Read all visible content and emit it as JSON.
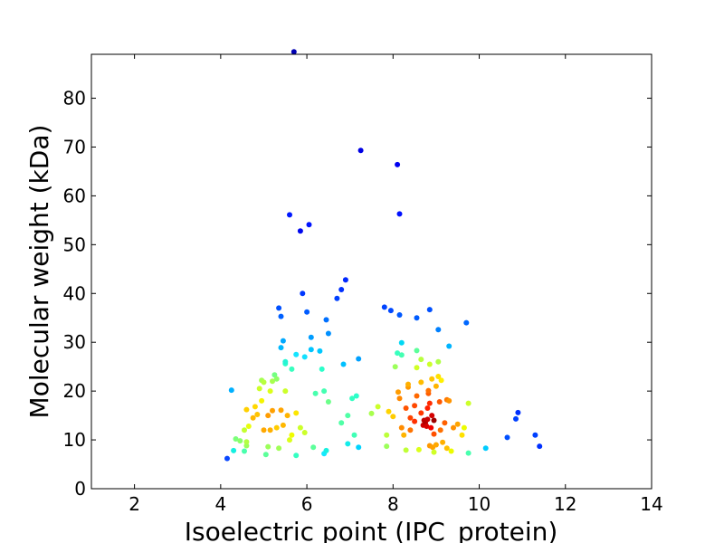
{
  "chart_data": {
    "type": "scatter",
    "title": "",
    "xlabel": "Isoelectric point (IPC_protein)",
    "ylabel": "Molecular weight (kDa)",
    "xlim": [
      1,
      14
    ],
    "ylim": [
      0,
      89
    ],
    "x_ticks": [
      2,
      4,
      6,
      8,
      10,
      12,
      14
    ],
    "y_ticks": [
      0,
      10,
      20,
      30,
      40,
      50,
      60,
      70,
      80
    ],
    "grid": false,
    "legend": "none",
    "colormap": "jet (point density)",
    "points": [
      {
        "x": 4.15,
        "y": 6.2,
        "c": "#0a48ff"
      },
      {
        "x": 4.25,
        "y": 20.2,
        "c": "#00b0ff"
      },
      {
        "x": 4.3,
        "y": 7.8,
        "c": "#14f0e0"
      },
      {
        "x": 4.35,
        "y": 10.2,
        "c": "#7cff7a"
      },
      {
        "x": 4.45,
        "y": 9.8,
        "c": "#8cff6a"
      },
      {
        "x": 4.55,
        "y": 7.7,
        "c": "#4affad"
      },
      {
        "x": 4.55,
        "y": 12.0,
        "c": "#c4ff30"
      },
      {
        "x": 4.6,
        "y": 16.2,
        "c": "#ffd000"
      },
      {
        "x": 4.6,
        "y": 8.8,
        "c": "#9cff5a"
      },
      {
        "x": 4.6,
        "y": 9.6,
        "c": "#b4ff42"
      },
      {
        "x": 4.65,
        "y": 12.8,
        "c": "#e8ff0c"
      },
      {
        "x": 4.75,
        "y": 14.5,
        "c": "#ffb800"
      },
      {
        "x": 4.8,
        "y": 16.8,
        "c": "#ffd800"
      },
      {
        "x": 4.85,
        "y": 15.2,
        "c": "#ffc400"
      },
      {
        "x": 4.9,
        "y": 20.5,
        "c": "#ccff2a"
      },
      {
        "x": 4.95,
        "y": 22.2,
        "c": "#a4ff52"
      },
      {
        "x": 4.95,
        "y": 18.0,
        "c": "#f4f400"
      },
      {
        "x": 5.0,
        "y": 12.0,
        "c": "#ffa800"
      },
      {
        "x": 5.0,
        "y": 21.8,
        "c": "#b8ff3e"
      },
      {
        "x": 5.05,
        "y": 7.0,
        "c": "#5cff9a"
      },
      {
        "x": 5.1,
        "y": 8.6,
        "c": "#9cff5a"
      },
      {
        "x": 5.1,
        "y": 15.0,
        "c": "#ff9c00"
      },
      {
        "x": 5.15,
        "y": 20.0,
        "c": "#dcff1a"
      },
      {
        "x": 5.15,
        "y": 12.0,
        "c": "#ffb000"
      },
      {
        "x": 5.2,
        "y": 16.0,
        "c": "#ffa000"
      },
      {
        "x": 5.2,
        "y": 22.0,
        "c": "#a8ff4e"
      },
      {
        "x": 5.25,
        "y": 23.3,
        "c": "#74ff82"
      },
      {
        "x": 5.3,
        "y": 22.5,
        "c": "#90ff66"
      },
      {
        "x": 5.3,
        "y": 12.5,
        "c": "#ffcc00"
      },
      {
        "x": 5.35,
        "y": 37.0,
        "c": "#0050ff"
      },
      {
        "x": 5.35,
        "y": 8.3,
        "c": "#a0ff56"
      },
      {
        "x": 5.4,
        "y": 35.3,
        "c": "#0060ff"
      },
      {
        "x": 5.4,
        "y": 28.9,
        "c": "#00b8ff"
      },
      {
        "x": 5.4,
        "y": 16.1,
        "c": "#ffa400"
      },
      {
        "x": 5.45,
        "y": 30.3,
        "c": "#00a8ff"
      },
      {
        "x": 5.45,
        "y": 13.0,
        "c": "#ffb800"
      },
      {
        "x": 5.5,
        "y": 25.6,
        "c": "#2cffca"
      },
      {
        "x": 5.5,
        "y": 26.0,
        "c": "#24f4d4"
      },
      {
        "x": 5.5,
        "y": 20.0,
        "c": "#ccff2a"
      },
      {
        "x": 5.55,
        "y": 15.0,
        "c": "#ffb400"
      },
      {
        "x": 5.6,
        "y": 56.1,
        "c": "#0018ff"
      },
      {
        "x": 5.6,
        "y": 10.0,
        "c": "#dcff1a"
      },
      {
        "x": 5.65,
        "y": 11.0,
        "c": "#f0fc00"
      },
      {
        "x": 5.65,
        "y": 24.5,
        "c": "#38ffbf"
      },
      {
        "x": 5.7,
        "y": 89.5,
        "c": "#0000b4"
      },
      {
        "x": 5.75,
        "y": 27.5,
        "c": "#14e4ff"
      },
      {
        "x": 5.75,
        "y": 15.5,
        "c": "#fce600"
      },
      {
        "x": 5.75,
        "y": 6.8,
        "c": "#34ffc2"
      },
      {
        "x": 5.85,
        "y": 52.8,
        "c": "#0008ee"
      },
      {
        "x": 5.85,
        "y": 12.5,
        "c": "#ccff2a"
      },
      {
        "x": 5.9,
        "y": 40.0,
        "c": "#0038ff"
      },
      {
        "x": 5.95,
        "y": 27.0,
        "c": "#14e0ff"
      },
      {
        "x": 5.95,
        "y": 11.5,
        "c": "#ccff2a"
      },
      {
        "x": 6.0,
        "y": 36.2,
        "c": "#005cff"
      },
      {
        "x": 6.05,
        "y": 54.1,
        "c": "#0014ff"
      },
      {
        "x": 6.1,
        "y": 28.5,
        "c": "#00c4ff"
      },
      {
        "x": 6.1,
        "y": 31.0,
        "c": "#009cff"
      },
      {
        "x": 6.15,
        "y": 8.5,
        "c": "#5cff9a"
      },
      {
        "x": 6.2,
        "y": 19.5,
        "c": "#48ffae"
      },
      {
        "x": 6.3,
        "y": 28.2,
        "c": "#00c8ff"
      },
      {
        "x": 6.35,
        "y": 24.5,
        "c": "#2cffca"
      },
      {
        "x": 6.4,
        "y": 7.2,
        "c": "#14e8ff"
      },
      {
        "x": 6.4,
        "y": 20.0,
        "c": "#44ffb2"
      },
      {
        "x": 6.45,
        "y": 34.6,
        "c": "#0070ff"
      },
      {
        "x": 6.45,
        "y": 7.8,
        "c": "#18f0e0"
      },
      {
        "x": 6.5,
        "y": 17.8,
        "c": "#6cff8a"
      },
      {
        "x": 6.5,
        "y": 31.8,
        "c": "#0090ff"
      },
      {
        "x": 6.7,
        "y": 39.0,
        "c": "#0040ff"
      },
      {
        "x": 6.8,
        "y": 40.8,
        "c": "#0030ff"
      },
      {
        "x": 6.8,
        "y": 13.5,
        "c": "#50ffa6"
      },
      {
        "x": 6.85,
        "y": 25.5,
        "c": "#00c0ff"
      },
      {
        "x": 6.9,
        "y": 42.8,
        "c": "#0028ff"
      },
      {
        "x": 6.95,
        "y": 15.0,
        "c": "#50ffa6"
      },
      {
        "x": 6.95,
        "y": 9.2,
        "c": "#14ecea"
      },
      {
        "x": 7.05,
        "y": 18.5,
        "c": "#34ffc2"
      },
      {
        "x": 7.1,
        "y": 11.0,
        "c": "#40ffb6"
      },
      {
        "x": 7.15,
        "y": 19.0,
        "c": "#2cffca"
      },
      {
        "x": 7.2,
        "y": 26.6,
        "c": "#00a0ff"
      },
      {
        "x": 7.2,
        "y": 8.5,
        "c": "#00d4ff"
      },
      {
        "x": 7.25,
        "y": 69.3,
        "c": "#0000e4"
      },
      {
        "x": 7.5,
        "y": 15.4,
        "c": "#a8ff4e"
      },
      {
        "x": 7.65,
        "y": 16.8,
        "c": "#ccff2a"
      },
      {
        "x": 7.8,
        "y": 37.2,
        "c": "#0044ff"
      },
      {
        "x": 7.85,
        "y": 11.0,
        "c": "#bcff3a"
      },
      {
        "x": 7.85,
        "y": 8.7,
        "c": "#9cff5a"
      },
      {
        "x": 7.9,
        "y": 15.8,
        "c": "#ffd400"
      },
      {
        "x": 7.95,
        "y": 36.5,
        "c": "#0048ff"
      },
      {
        "x": 8.0,
        "y": 14.8,
        "c": "#ffcc00"
      },
      {
        "x": 8.05,
        "y": 25.0,
        "c": "#9cff5a"
      },
      {
        "x": 8.1,
        "y": 66.4,
        "c": "#0000f0"
      },
      {
        "x": 8.1,
        "y": 27.8,
        "c": "#38ffbf"
      },
      {
        "x": 8.12,
        "y": 19.8,
        "c": "#ff9c00"
      },
      {
        "x": 8.15,
        "y": 56.3,
        "c": "#0010ff"
      },
      {
        "x": 8.15,
        "y": 35.6,
        "c": "#0058ff"
      },
      {
        "x": 8.15,
        "y": 18.5,
        "c": "#ff8800"
      },
      {
        "x": 8.2,
        "y": 29.9,
        "c": "#00d8f4"
      },
      {
        "x": 8.2,
        "y": 27.4,
        "c": "#44ffb2"
      },
      {
        "x": 8.2,
        "y": 12.5,
        "c": "#ff8c00"
      },
      {
        "x": 8.25,
        "y": 11.0,
        "c": "#ffb400"
      },
      {
        "x": 8.3,
        "y": 7.9,
        "c": "#c0ff36"
      },
      {
        "x": 8.3,
        "y": 16.5,
        "c": "#ff5400"
      },
      {
        "x": 8.35,
        "y": 20.8,
        "c": "#ff9800"
      },
      {
        "x": 8.35,
        "y": 21.4,
        "c": "#ffb000"
      },
      {
        "x": 8.4,
        "y": 14.5,
        "c": "#ff4400"
      },
      {
        "x": 8.4,
        "y": 12.0,
        "c": "#ff7400"
      },
      {
        "x": 8.5,
        "y": 13.8,
        "c": "#ff3000"
      },
      {
        "x": 8.5,
        "y": 17.0,
        "c": "#ff4800"
      },
      {
        "x": 8.55,
        "y": 35.0,
        "c": "#005cff"
      },
      {
        "x": 8.55,
        "y": 28.3,
        "c": "#5cff9a"
      },
      {
        "x": 8.55,
        "y": 19.0,
        "c": "#ff6800"
      },
      {
        "x": 8.55,
        "y": 24.8,
        "c": "#d0ff26"
      },
      {
        "x": 8.6,
        "y": 8.0,
        "c": "#dcff1a"
      },
      {
        "x": 8.65,
        "y": 26.5,
        "c": "#b8ff3e"
      },
      {
        "x": 8.65,
        "y": 15.5,
        "c": "#ff3800"
      },
      {
        "x": 8.65,
        "y": 21.8,
        "c": "#ffbc00"
      },
      {
        "x": 8.7,
        "y": 13.0,
        "c": "#d00000"
      },
      {
        "x": 8.72,
        "y": 14.0,
        "c": "#c00000"
      },
      {
        "x": 8.75,
        "y": 13.5,
        "c": "#b40000"
      },
      {
        "x": 8.78,
        "y": 12.8,
        "c": "#d80000"
      },
      {
        "x": 8.8,
        "y": 14.2,
        "c": "#c80000"
      },
      {
        "x": 8.8,
        "y": 16.5,
        "c": "#ff2000"
      },
      {
        "x": 8.82,
        "y": 19.5,
        "c": "#ff5c00"
      },
      {
        "x": 8.82,
        "y": 20.1,
        "c": "#ff7000"
      },
      {
        "x": 8.85,
        "y": 36.7,
        "c": "#0050ff"
      },
      {
        "x": 8.85,
        "y": 25.5,
        "c": "#ccff2a"
      },
      {
        "x": 8.85,
        "y": 17.5,
        "c": "#ff2c00"
      },
      {
        "x": 8.85,
        "y": 8.8,
        "c": "#ff9800"
      },
      {
        "x": 8.88,
        "y": 12.5,
        "c": "#f00000"
      },
      {
        "x": 8.9,
        "y": 15.0,
        "c": "#d40000"
      },
      {
        "x": 8.9,
        "y": 22.5,
        "c": "#ffc400"
      },
      {
        "x": 8.92,
        "y": 8.5,
        "c": "#ffa000"
      },
      {
        "x": 8.95,
        "y": 14.0,
        "c": "#9c0000"
      },
      {
        "x": 8.95,
        "y": 7.5,
        "c": "#d0ff26"
      },
      {
        "x": 8.95,
        "y": 11.2,
        "c": "#ff5000"
      },
      {
        "x": 9.0,
        "y": 21.0,
        "c": "#ffb400"
      },
      {
        "x": 9.0,
        "y": 9.0,
        "c": "#ffa800"
      },
      {
        "x": 9.05,
        "y": 32.6,
        "c": "#0080ff"
      },
      {
        "x": 9.05,
        "y": 26.0,
        "c": "#b0ff46"
      },
      {
        "x": 9.05,
        "y": 23.0,
        "c": "#ffe000"
      },
      {
        "x": 9.08,
        "y": 17.8,
        "c": "#ff5800"
      },
      {
        "x": 9.1,
        "y": 12.0,
        "c": "#ff7000"
      },
      {
        "x": 9.12,
        "y": 22.2,
        "c": "#fff000"
      },
      {
        "x": 9.15,
        "y": 9.5,
        "c": "#ffb000"
      },
      {
        "x": 9.2,
        "y": 13.5,
        "c": "#ff6000"
      },
      {
        "x": 9.25,
        "y": 18.2,
        "c": "#ff7800"
      },
      {
        "x": 9.25,
        "y": 8.3,
        "c": "#ffc000"
      },
      {
        "x": 9.3,
        "y": 29.2,
        "c": "#00b4ff"
      },
      {
        "x": 9.3,
        "y": 18.0,
        "c": "#ff9400"
      },
      {
        "x": 9.35,
        "y": 7.7,
        "c": "#ecfc00"
      },
      {
        "x": 9.4,
        "y": 12.5,
        "c": "#ff9000"
      },
      {
        "x": 9.5,
        "y": 13.2,
        "c": "#ffa400"
      },
      {
        "x": 9.6,
        "y": 11.0,
        "c": "#ffe000"
      },
      {
        "x": 9.65,
        "y": 12.5,
        "c": "#ecfc00"
      },
      {
        "x": 9.7,
        "y": 34.0,
        "c": "#0068ff"
      },
      {
        "x": 9.75,
        "y": 17.5,
        "c": "#ccff2a"
      },
      {
        "x": 9.75,
        "y": 7.3,
        "c": "#48ffae"
      },
      {
        "x": 10.15,
        "y": 8.3,
        "c": "#00ccff"
      },
      {
        "x": 10.65,
        "y": 10.5,
        "c": "#0050ff"
      },
      {
        "x": 10.85,
        "y": 14.3,
        "c": "#0040ff"
      },
      {
        "x": 10.9,
        "y": 15.6,
        "c": "#0030ff"
      },
      {
        "x": 11.3,
        "y": 11.0,
        "c": "#0040ff"
      },
      {
        "x": 11.4,
        "y": 8.7,
        "c": "#0030ff"
      }
    ]
  }
}
